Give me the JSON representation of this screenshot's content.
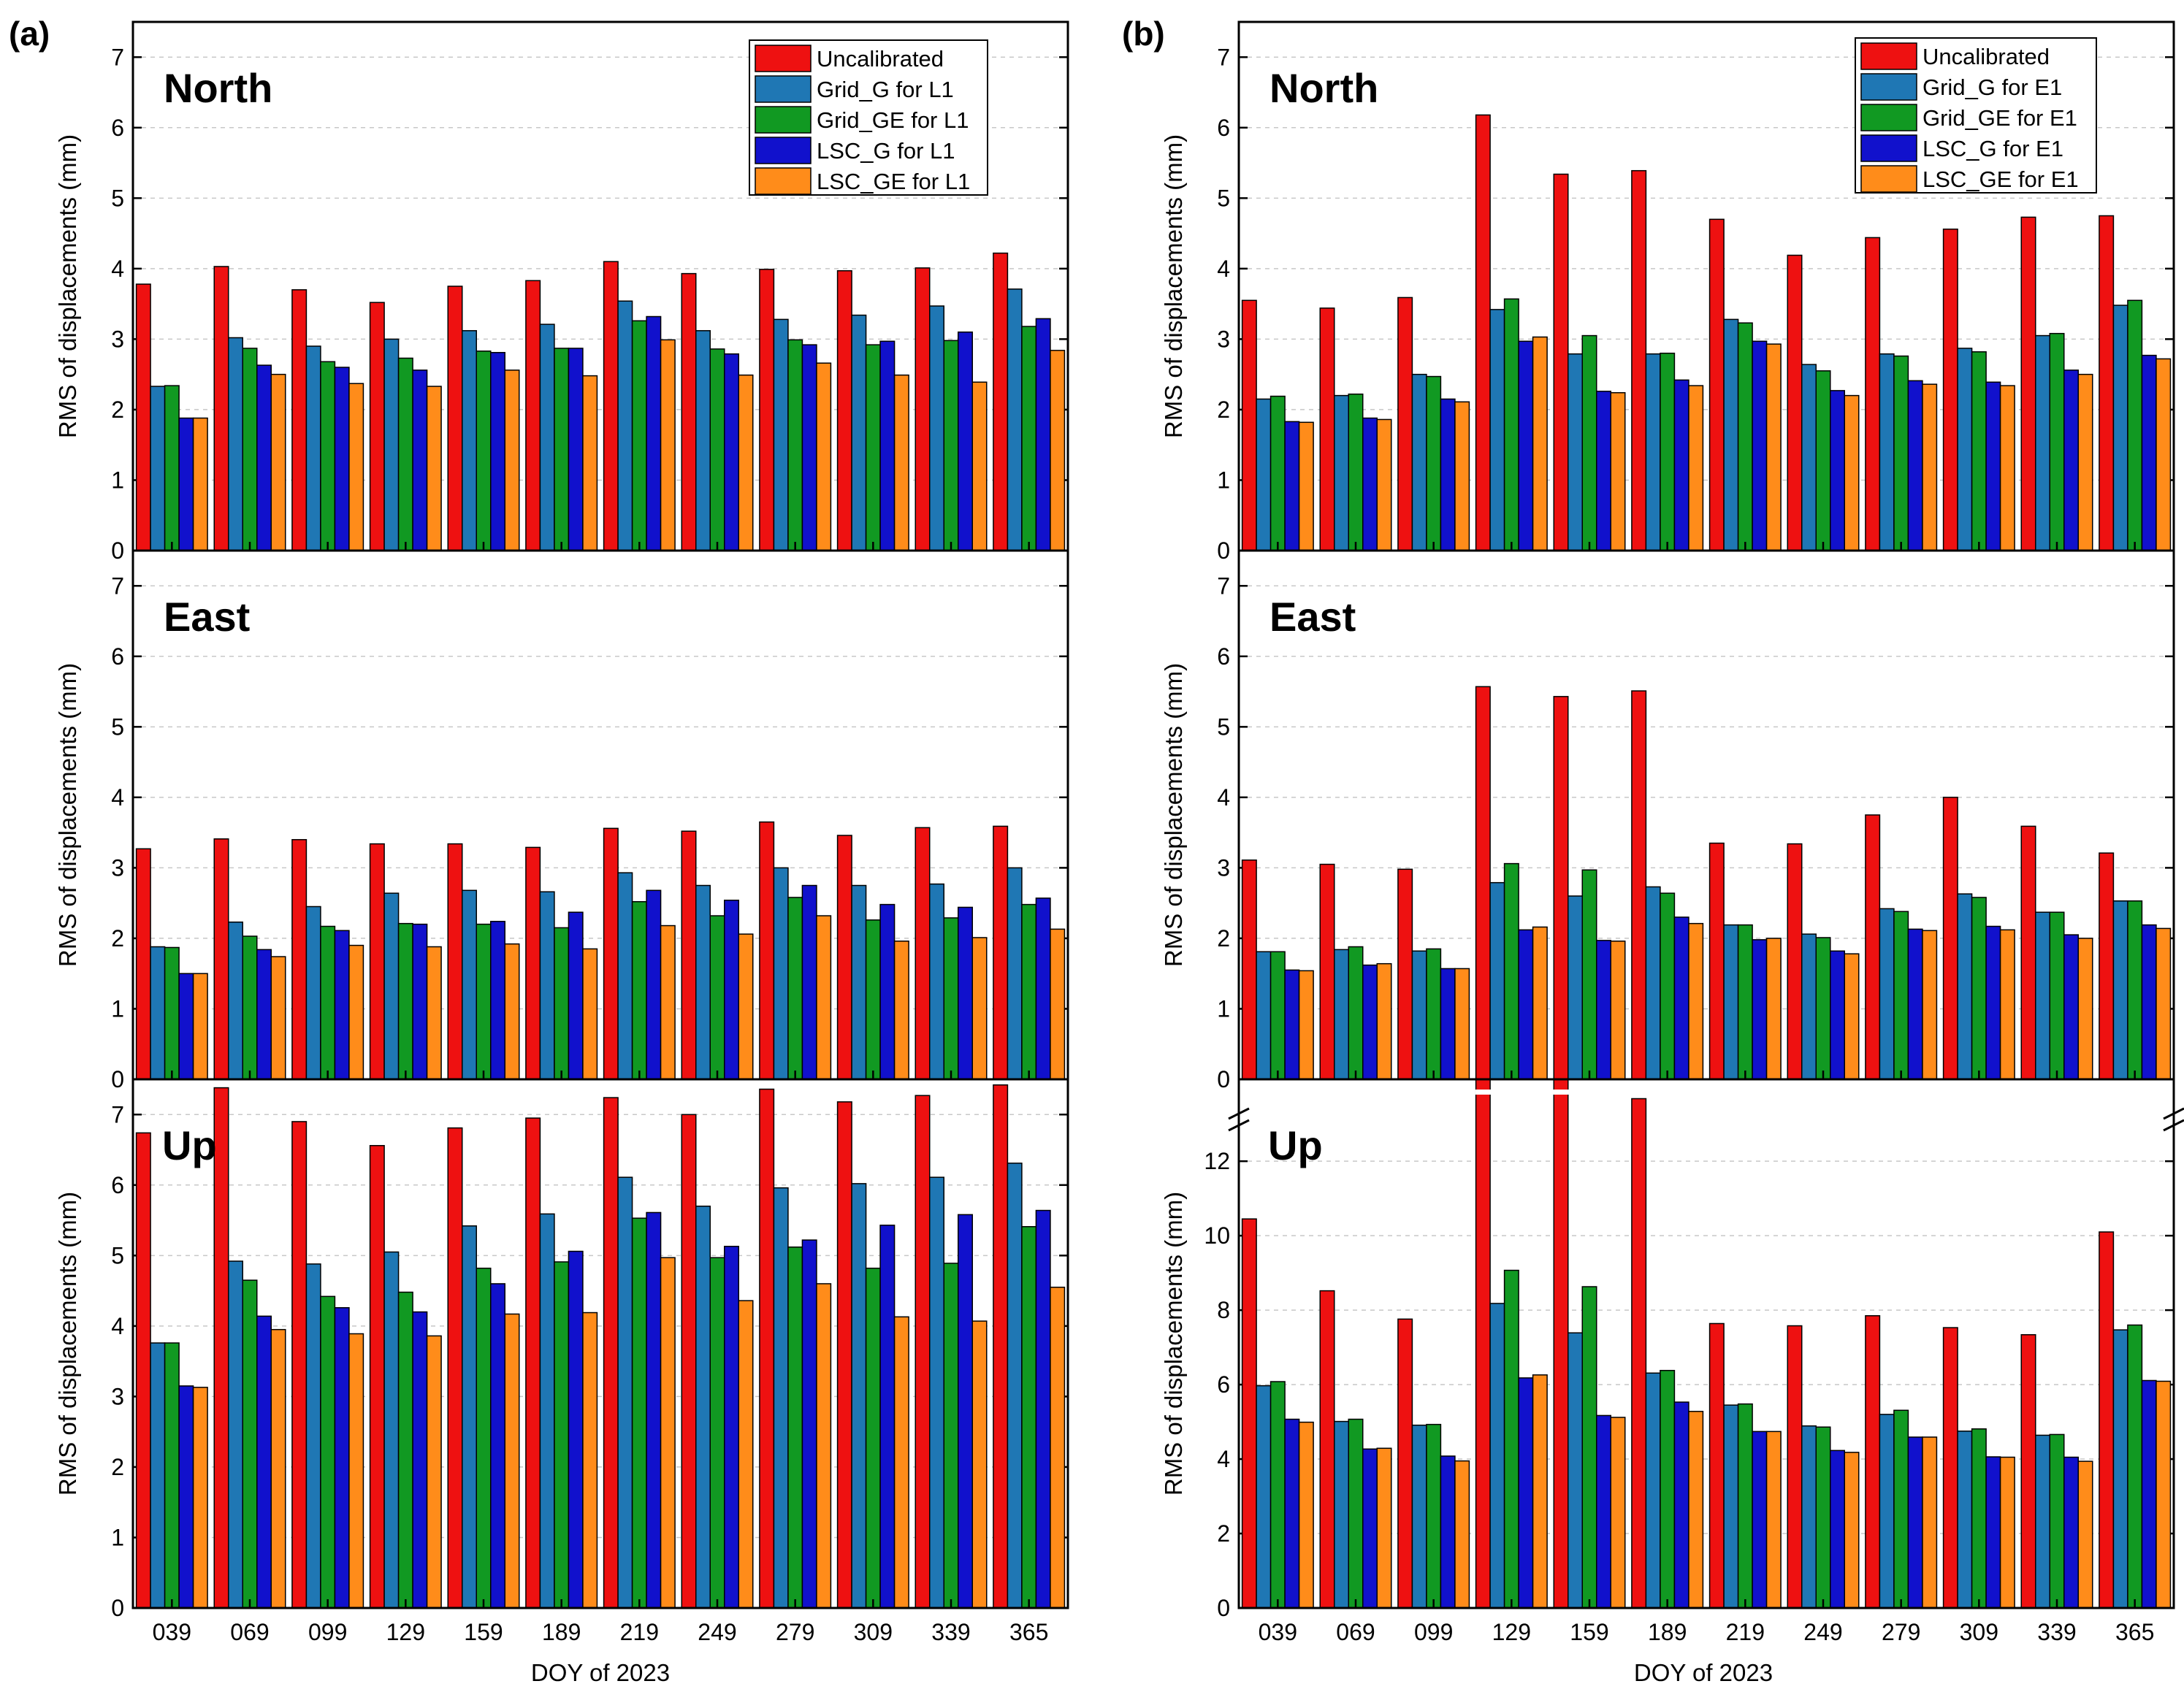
{
  "colors": {
    "Uncalibrated": "#ee1111",
    "Grid_G": "#1f77b4",
    "Grid_GE": "#119922",
    "LSC_G": "#1111cc",
    "LSC_GE": "#ff8c1a"
  },
  "panels": [
    {
      "letter": "(a)",
      "xlabel": "DOY of 2023",
      "legend": [
        "Uncalibrated",
        "Grid_G for L1",
        "Grid_GE for L1",
        "LSC_G for L1",
        "LSC_GE for L1"
      ]
    },
    {
      "letter": "(b)",
      "xlabel": "DOY of 2023",
      "legend": [
        "Uncalibrated",
        "Grid_G for E1",
        "Grid_GE for E1",
        "LSC_G for E1",
        "LSC_GE for E1"
      ]
    }
  ],
  "chart_data": [
    {
      "type": "bar",
      "panel": "(a)",
      "title": "North",
      "ylabel": "RMS of displacements (mm)",
      "ylim": [
        0,
        7.5
      ],
      "yticks": [
        0,
        1,
        2,
        3,
        4,
        5,
        6,
        7
      ],
      "categories": [
        "039",
        "069",
        "099",
        "129",
        "159",
        "189",
        "219",
        "249",
        "279",
        "309",
        "339",
        "365"
      ],
      "series": [
        {
          "name": "Uncalibrated",
          "values": [
            3.78,
            4.03,
            3.7,
            3.52,
            3.75,
            3.83,
            4.1,
            3.93,
            3.99,
            3.97,
            4.01,
            4.22
          ]
        },
        {
          "name": "Grid_G for L1",
          "values": [
            2.33,
            3.02,
            2.9,
            3.0,
            3.12,
            3.21,
            3.54,
            3.12,
            3.28,
            3.34,
            3.47,
            3.71
          ]
        },
        {
          "name": "Grid_GE for L1",
          "values": [
            2.34,
            2.87,
            2.68,
            2.73,
            2.83,
            2.87,
            3.26,
            2.86,
            2.99,
            2.92,
            2.98,
            3.18
          ]
        },
        {
          "name": "LSC_G for L1",
          "values": [
            1.88,
            2.63,
            2.6,
            2.56,
            2.81,
            2.87,
            3.32,
            2.79,
            2.92,
            2.97,
            3.1,
            3.29
          ]
        },
        {
          "name": "LSC_GE for L1",
          "values": [
            1.88,
            2.5,
            2.37,
            2.33,
            2.56,
            2.48,
            2.99,
            2.49,
            2.66,
            2.49,
            2.39,
            2.84
          ]
        }
      ]
    },
    {
      "type": "bar",
      "panel": "(a)",
      "title": "East",
      "ylabel": "RMS of displacements (mm)",
      "ylim": [
        0,
        7.5
      ],
      "yticks": [
        0,
        1,
        2,
        3,
        4,
        5,
        6,
        7
      ],
      "categories": [
        "039",
        "069",
        "099",
        "129",
        "159",
        "189",
        "219",
        "249",
        "279",
        "309",
        "339",
        "365"
      ],
      "series": [
        {
          "name": "Uncalibrated",
          "values": [
            3.27,
            3.41,
            3.4,
            3.34,
            3.34,
            3.29,
            3.56,
            3.52,
            3.65,
            3.46,
            3.57,
            3.59
          ]
        },
        {
          "name": "Grid_G for L1",
          "values": [
            1.88,
            2.23,
            2.45,
            2.64,
            2.68,
            2.66,
            2.93,
            2.75,
            3.0,
            2.75,
            2.77,
            3.0
          ]
        },
        {
          "name": "Grid_GE for L1",
          "values": [
            1.87,
            2.03,
            2.17,
            2.21,
            2.2,
            2.15,
            2.52,
            2.32,
            2.58,
            2.26,
            2.29,
            2.48
          ]
        },
        {
          "name": "LSC_G for L1",
          "values": [
            1.5,
            1.84,
            2.11,
            2.2,
            2.24,
            2.37,
            2.68,
            2.54,
            2.75,
            2.48,
            2.44,
            2.57
          ]
        },
        {
          "name": "LSC_GE for L1",
          "values": [
            1.5,
            1.74,
            1.9,
            1.88,
            1.92,
            1.85,
            2.18,
            2.06,
            2.32,
            1.96,
            2.01,
            2.13
          ]
        }
      ]
    },
    {
      "type": "bar",
      "panel": "(a)",
      "title": "Up",
      "ylabel": "RMS of displacements (mm)",
      "ylim": [
        0,
        7.5
      ],
      "yticks": [
        0,
        1,
        2,
        3,
        4,
        5,
        6,
        7
      ],
      "categories": [
        "039",
        "069",
        "099",
        "129",
        "159",
        "189",
        "219",
        "249",
        "279",
        "309",
        "339",
        "365"
      ],
      "series": [
        {
          "name": "Uncalibrated",
          "values": [
            6.74,
            7.38,
            6.9,
            6.56,
            6.81,
            6.95,
            7.24,
            7.0,
            7.36,
            7.18,
            7.27,
            7.42
          ]
        },
        {
          "name": "Grid_G for L1",
          "values": [
            3.76,
            4.92,
            4.88,
            5.05,
            5.42,
            5.59,
            6.11,
            5.7,
            5.96,
            6.02,
            6.11,
            6.31
          ]
        },
        {
          "name": "Grid_GE for L1",
          "values": [
            3.76,
            4.65,
            4.42,
            4.48,
            4.82,
            4.91,
            5.53,
            4.97,
            5.12,
            4.82,
            4.89,
            5.41
          ]
        },
        {
          "name": "LSC_G for L1",
          "values": [
            3.15,
            4.14,
            4.26,
            4.2,
            4.6,
            5.06,
            5.61,
            5.13,
            5.22,
            5.43,
            5.58,
            5.64
          ]
        },
        {
          "name": "LSC_GE for L1",
          "values": [
            3.13,
            3.95,
            3.89,
            3.86,
            4.17,
            4.19,
            4.97,
            4.36,
            4.6,
            4.13,
            4.07,
            4.55
          ]
        }
      ]
    },
    {
      "type": "bar",
      "panel": "(b)",
      "title": "North",
      "ylabel": "RMS of displacements (mm)",
      "ylim": [
        0,
        7.5
      ],
      "yticks": [
        0,
        1,
        2,
        3,
        4,
        5,
        6,
        7
      ],
      "categories": [
        "039",
        "069",
        "099",
        "129",
        "159",
        "189",
        "219",
        "249",
        "279",
        "309",
        "339",
        "365"
      ],
      "series": [
        {
          "name": "Uncalibrated",
          "values": [
            3.55,
            3.44,
            3.59,
            6.18,
            5.34,
            5.39,
            4.7,
            4.19,
            4.44,
            4.56,
            4.73,
            4.75
          ]
        },
        {
          "name": "Grid_G for E1",
          "values": [
            2.15,
            2.2,
            2.5,
            3.42,
            2.79,
            2.79,
            3.28,
            2.64,
            2.79,
            2.87,
            3.05,
            3.48
          ]
        },
        {
          "name": "Grid_GE for E1",
          "values": [
            2.19,
            2.22,
            2.47,
            3.57,
            3.05,
            2.8,
            3.23,
            2.55,
            2.76,
            2.82,
            3.08,
            3.55
          ]
        },
        {
          "name": "LSC_G for E1",
          "values": [
            1.83,
            1.88,
            2.15,
            2.97,
            2.26,
            2.42,
            2.97,
            2.27,
            2.41,
            2.39,
            2.56,
            2.77
          ]
        },
        {
          "name": "LSC_GE for E1",
          "values": [
            1.82,
            1.86,
            2.11,
            3.03,
            2.24,
            2.34,
            2.93,
            2.2,
            2.36,
            2.34,
            2.5,
            2.72
          ]
        }
      ]
    },
    {
      "type": "bar",
      "panel": "(b)",
      "title": "East",
      "ylabel": "RMS of displacements (mm)",
      "ylim": [
        0,
        7.5
      ],
      "yticks": [
        0,
        1,
        2,
        3,
        4,
        5,
        6,
        7
      ],
      "categories": [
        "039",
        "069",
        "099",
        "129",
        "159",
        "189",
        "219",
        "249",
        "279",
        "309",
        "339",
        "365"
      ],
      "series": [
        {
          "name": "Uncalibrated",
          "values": [
            3.11,
            3.05,
            2.98,
            5.57,
            5.43,
            5.51,
            3.35,
            3.34,
            3.75,
            4.0,
            3.59,
            3.21
          ]
        },
        {
          "name": "Grid_G for E1",
          "values": [
            1.81,
            1.84,
            1.82,
            2.79,
            2.6,
            2.73,
            2.19,
            2.06,
            2.42,
            2.63,
            2.37,
            2.53
          ]
        },
        {
          "name": "Grid_GE for E1",
          "values": [
            1.81,
            1.88,
            1.85,
            3.06,
            2.97,
            2.64,
            2.19,
            2.01,
            2.38,
            2.58,
            2.37,
            2.53
          ]
        },
        {
          "name": "LSC_G for E1",
          "values": [
            1.55,
            1.62,
            1.57,
            2.12,
            1.97,
            2.3,
            1.98,
            1.82,
            2.13,
            2.17,
            2.05,
            2.19
          ]
        },
        {
          "name": "LSC_GE for E1",
          "values": [
            1.54,
            1.64,
            1.57,
            2.16,
            1.96,
            2.21,
            2.0,
            1.78,
            2.11,
            2.12,
            2.0,
            2.14
          ]
        }
      ]
    },
    {
      "type": "bar",
      "panel": "(b)",
      "title": "Up",
      "ylabel": "RMS of displacements (mm)",
      "ylim": [
        0,
        14.2
      ],
      "yticks": [
        0,
        2,
        4,
        6,
        8,
        10,
        12
      ],
      "axis_break": true,
      "categories": [
        "039",
        "069",
        "099",
        "129",
        "159",
        "189",
        "219",
        "249",
        "279",
        "309",
        "339",
        "365"
      ],
      "series": [
        {
          "name": "Uncalibrated",
          "values": [
            10.45,
            8.52,
            7.76,
            14.5,
            14.3,
            13.68,
            7.64,
            7.58,
            7.85,
            7.53,
            7.34,
            10.1
          ]
        },
        {
          "name": "Grid_G for E1",
          "values": [
            5.97,
            5.01,
            4.91,
            8.18,
            7.39,
            6.31,
            5.45,
            4.89,
            5.2,
            4.75,
            4.64,
            7.47
          ]
        },
        {
          "name": "Grid_GE for E1",
          "values": [
            6.08,
            5.07,
            4.93,
            9.07,
            8.63,
            6.38,
            5.48,
            4.86,
            5.31,
            4.81,
            4.66,
            7.6
          ]
        },
        {
          "name": "LSC_G for E1",
          "values": [
            5.07,
            4.27,
            4.08,
            6.18,
            5.17,
            5.53,
            4.74,
            4.23,
            4.59,
            4.06,
            4.05,
            6.11
          ]
        },
        {
          "name": "LSC_GE for E1",
          "values": [
            4.99,
            4.29,
            3.95,
            6.26,
            5.12,
            5.28,
            4.74,
            4.18,
            4.59,
            4.05,
            3.94,
            6.09
          ]
        }
      ]
    }
  ]
}
